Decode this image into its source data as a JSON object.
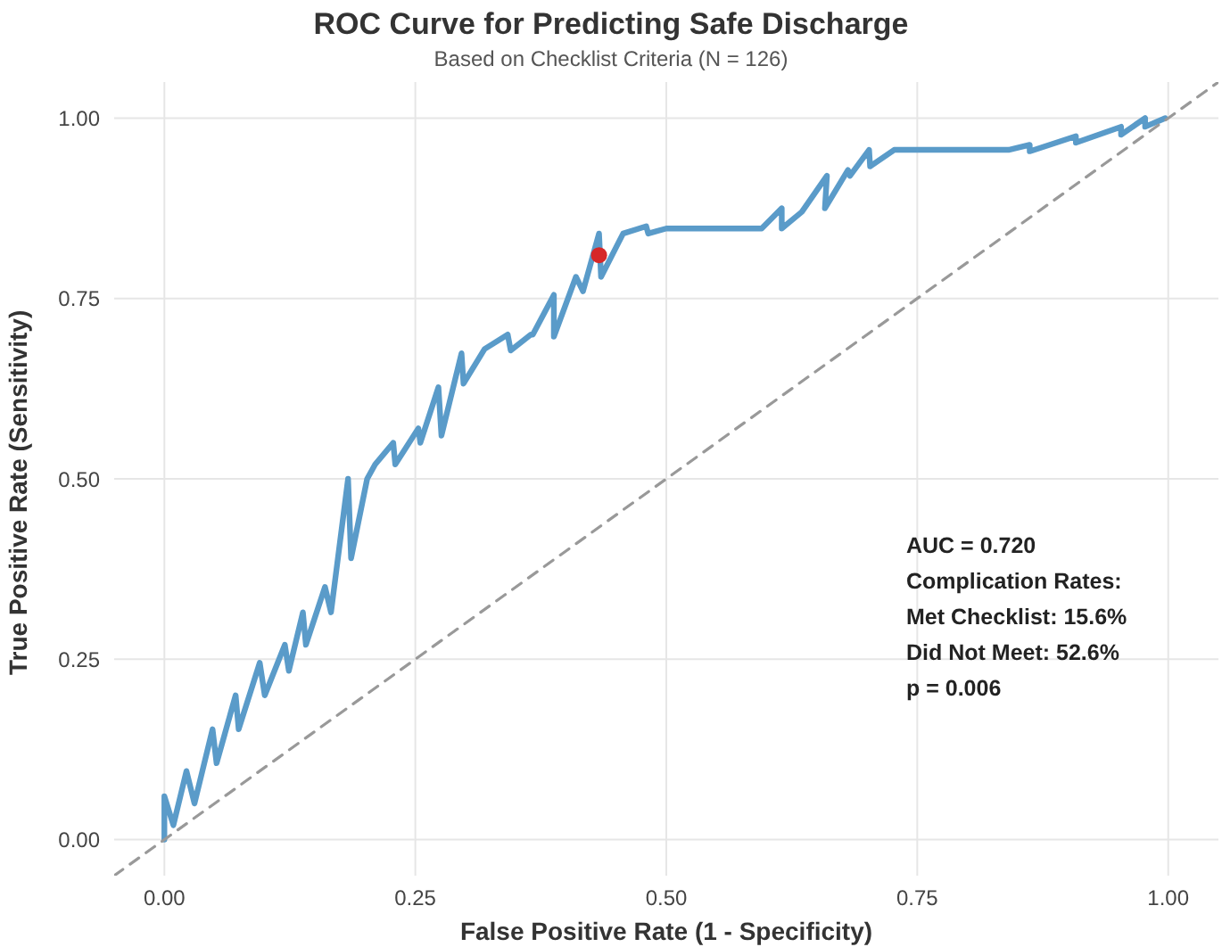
{
  "chart_data": {
    "type": "line",
    "title": "ROC Curve for Predicting Safe Discharge",
    "subtitle": "Based on Checklist Criteria (N = 126)",
    "xlabel": "False Positive Rate (1 - Specificity)",
    "ylabel": "True Positive Rate (Sensitivity)",
    "xlim": [
      -0.05,
      1.05
    ],
    "ylim": [
      -0.05,
      1.05
    ],
    "xticks": [
      {
        "value": 0,
        "label": "0.00"
      },
      {
        "value": 0.25,
        "label": "0.25"
      },
      {
        "value": 0.5,
        "label": "0.50"
      },
      {
        "value": 0.75,
        "label": "0.75"
      },
      {
        "value": 1,
        "label": "1.00"
      }
    ],
    "yticks": [
      {
        "value": 0,
        "label": "0.00"
      },
      {
        "value": 0.25,
        "label": "0.25"
      },
      {
        "value": 0.5,
        "label": "0.50"
      },
      {
        "value": 0.75,
        "label": "0.75"
      },
      {
        "value": 1,
        "label": "1.00"
      }
    ],
    "grid": true,
    "marker": "none",
    "series": [
      {
        "color": "#5a9bc9",
        "x": [
          0,
          0,
          0.009,
          0.022,
          0.03,
          0.048,
          0.052,
          0.071,
          0.074,
          0.095,
          0.1,
          0.12,
          0.124,
          0.138,
          0.141,
          0.16,
          0.166,
          0.183,
          0.186,
          0.202,
          0.21,
          0.228,
          0.23,
          0.253,
          0.255,
          0.273,
          0.276,
          0.296,
          0.298,
          0.319,
          0.342,
          0.345,
          0.365,
          0.367,
          0.388,
          0.388,
          0.41,
          0.417,
          0.433,
          0.435,
          0.457,
          0.48,
          0.482,
          0.5,
          0.595,
          0.615,
          0.615,
          0.635,
          0.66,
          0.658,
          0.681,
          0.683,
          0.702,
          0.703,
          0.727,
          0.841,
          0.862,
          0.862,
          0.908,
          0.908,
          0.953,
          0.953,
          0.977,
          0.977,
          0.997
        ],
        "values": [
          0,
          0.06,
          0.02,
          0.095,
          0.05,
          0.153,
          0.106,
          0.2,
          0.153,
          0.245,
          0.2,
          0.27,
          0.234,
          0.315,
          0.27,
          0.35,
          0.315,
          0.5,
          0.39,
          0.5,
          0.52,
          0.55,
          0.52,
          0.57,
          0.55,
          0.627,
          0.56,
          0.674,
          0.632,
          0.68,
          0.7,
          0.678,
          0.7,
          0.7,
          0.755,
          0.697,
          0.78,
          0.76,
          0.84,
          0.78,
          0.84,
          0.85,
          0.84,
          0.847,
          0.847,
          0.875,
          0.847,
          0.87,
          0.92,
          0.875,
          0.928,
          0.92,
          0.956,
          0.933,
          0.956,
          0.956,
          0.963,
          0.954,
          0.975,
          0.966,
          0.988,
          0.977,
          1,
          0.988,
          1
        ]
      },
      {
        "type": "line",
        "color": "#999999",
        "line_style": "dashed",
        "x": [
          -0.05,
          1.05
        ],
        "values": [
          -0.05,
          1.05
        ]
      },
      {
        "type": "scatter",
        "color": "#d62728",
        "marker": "circle",
        "x": [
          0.433
        ],
        "values": [
          0.81
        ]
      }
    ],
    "annotations": [
      "AUC = 0.720",
      "Complication Rates:",
      "Met Checklist: 15.6%",
      "Did Not Meet: 52.6%",
      "p = 0.006"
    ]
  }
}
